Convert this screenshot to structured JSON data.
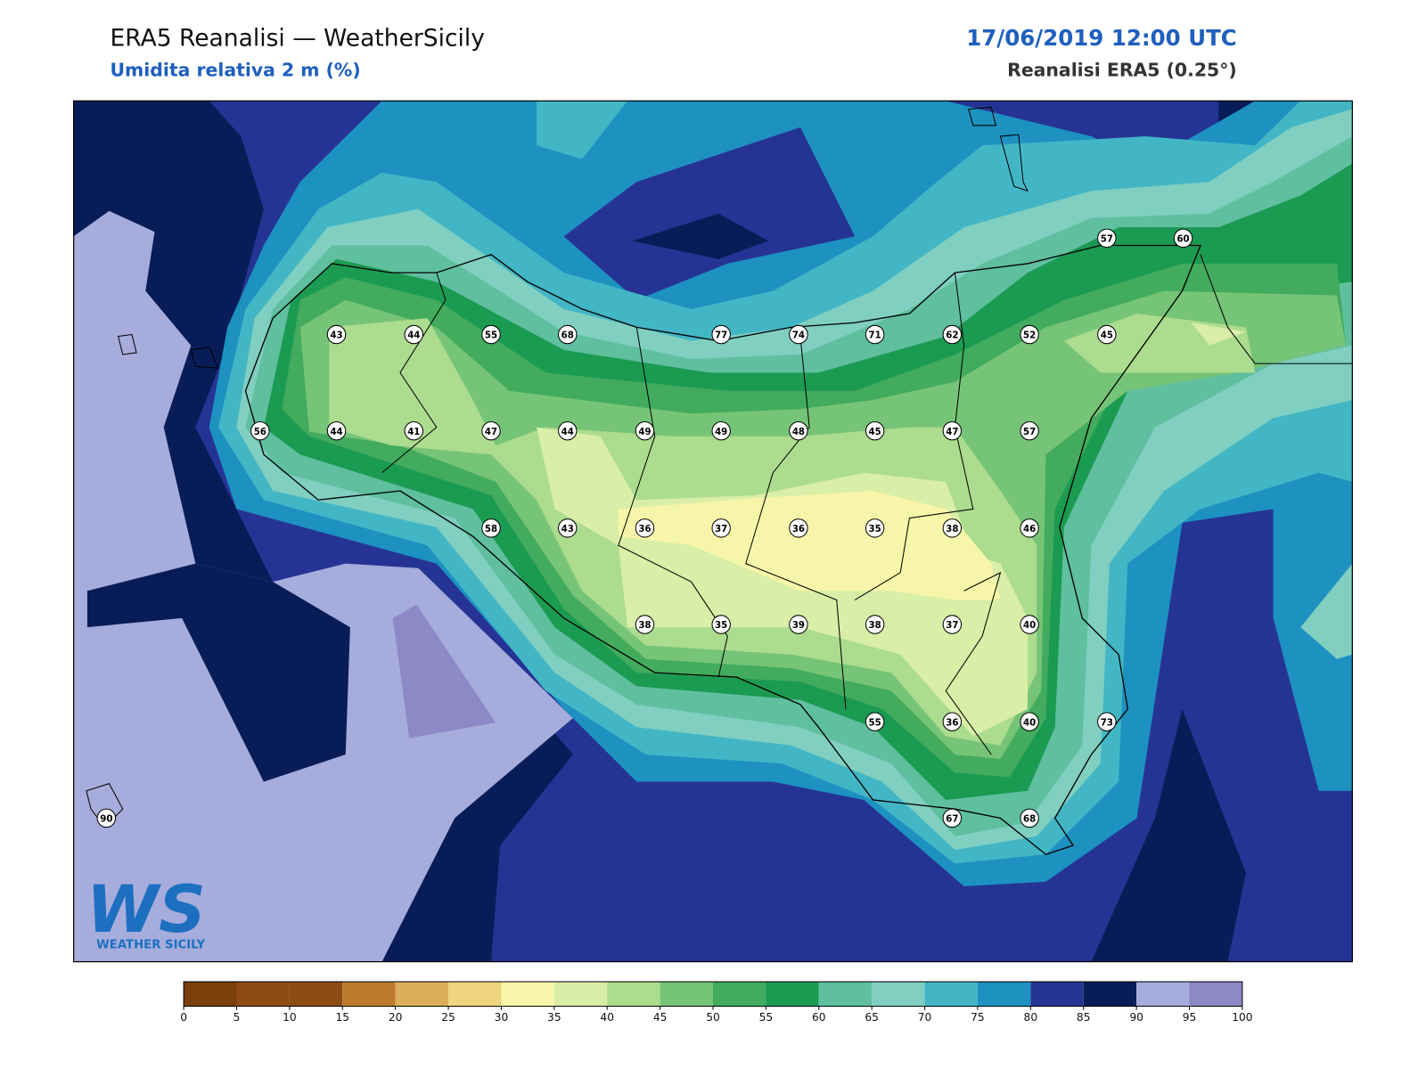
{
  "header": {
    "title": "ERA5 Reanalisi — WeatherSicily",
    "subtitle": "Umidita relativa 2 m (%)",
    "datetime": "17/06/2019 12:00 UTC",
    "source": "Reanalisi ERA5 (0.25°)"
  },
  "map": {
    "stations": {
      "values": [
        57,
        60,
        43,
        44,
        55,
        68,
        77,
        74,
        71,
        62,
        52,
        45,
        56,
        44,
        41,
        47,
        44,
        49,
        49,
        48,
        45,
        47,
        57,
        58,
        43,
        36,
        37,
        36,
        35,
        38,
        46,
        38,
        35,
        39,
        38,
        37,
        40,
        55,
        36,
        40,
        73,
        90,
        67,
        68
      ]
    }
  },
  "colorbar": {
    "levels": [
      0,
      5,
      10,
      15,
      20,
      25,
      30,
      35,
      40,
      45,
      50,
      55,
      60,
      65,
      70,
      75,
      80,
      85,
      90,
      95,
      100
    ],
    "colors": [
      "#7a3f0a",
      "#8e4c14",
      "#8e4c14",
      "#be7a2f",
      "#ddae5b",
      "#f0d57e",
      "#f7f5a9",
      "#d9eea6",
      "#acdc8e",
      "#76c477",
      "#42ab5d",
      "#1b9a52",
      "#5fbf9f",
      "#80cfc0",
      "#42b6c5",
      "#1d91c0",
      "#253494",
      "#081d58",
      "#a6acdb",
      "#8c89c6"
    ]
  },
  "logo": {
    "mark": "WS",
    "text": "WEATHER SICILY"
  }
}
